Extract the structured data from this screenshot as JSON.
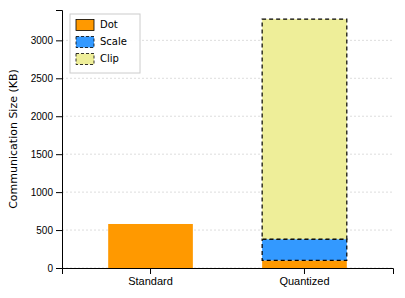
{
  "chart_data": {
    "type": "bar",
    "stacked": true,
    "categories": [
      "Standard",
      "Quantized"
    ],
    "series": [
      {
        "name": "Dot",
        "color": "#ff9900",
        "values": [
          580,
          100
        ]
      },
      {
        "name": "Scale",
        "color": "#3399ff",
        "values": [
          0,
          280
        ],
        "line_style": "dashed"
      },
      {
        "name": "Clip",
        "color": "#eeee99",
        "values": [
          0,
          2900
        ],
        "line_style": "dashed"
      }
    ],
    "ylabel": "Communication Size (KB)",
    "ylim": [
      0,
      3400
    ],
    "yticks": [
      0,
      500,
      1000,
      1500,
      2000,
      2500,
      3000
    ],
    "grid": true,
    "legend": "upper left"
  }
}
